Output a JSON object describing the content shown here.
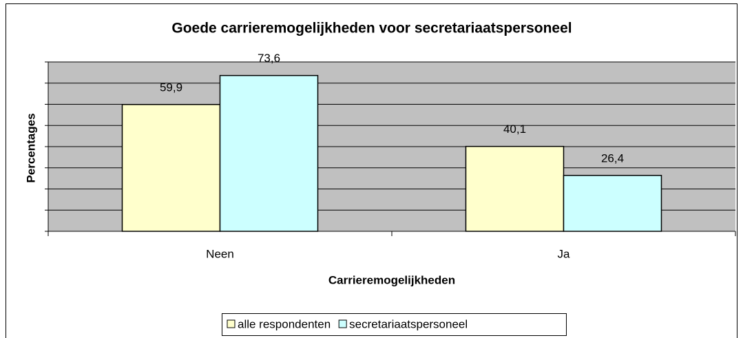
{
  "chart_data": {
    "type": "bar",
    "title": "Goede carrieremogelijkheden voor secretariaatspersoneel",
    "x_label": "Carrieremogelijkheden",
    "y_label": "Percentages",
    "categories": [
      "Neen",
      "Ja"
    ],
    "series": [
      {
        "name": "alle respondenten",
        "color": "#ffffcc",
        "values": [
          59.9,
          40.1
        ],
        "value_labels": [
          "59,9",
          "40,1"
        ]
      },
      {
        "name": "secretariaatspersoneel",
        "color": "#ccffff",
        "values": [
          73.6,
          26.4
        ],
        "value_labels": [
          "73,6",
          "26,4"
        ]
      }
    ],
    "ylim": [
      0,
      80
    ],
    "yticks": [
      0,
      10,
      20,
      30,
      40,
      50,
      60,
      70,
      80
    ],
    "grid": true,
    "plot_background": "#c0c0c0",
    "legend": "bottom"
  }
}
